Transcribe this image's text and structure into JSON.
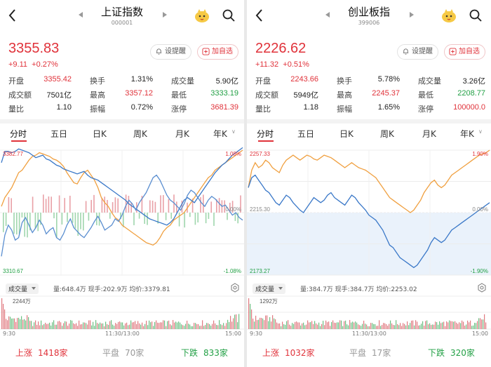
{
  "panels": [
    {
      "id": "left",
      "title": "上证指数",
      "code": "000001",
      "price": "3355.83",
      "change": "+9.11",
      "change_pct": "+0.27%",
      "remind_label": "设提醒",
      "watch_label": "加自选",
      "stats": [
        [
          {
            "label": "开盘",
            "value": "3355.42",
            "color": "red"
          },
          {
            "label": "换手",
            "value": "1.31%",
            "color": "dark"
          },
          {
            "label": "成交量",
            "value": "5.90亿",
            "color": "dark"
          }
        ],
        [
          {
            "label": "成交额",
            "value": "7501亿",
            "color": "dark"
          },
          {
            "label": "最高",
            "value": "3357.12",
            "color": "red"
          },
          {
            "label": "最低",
            "value": "3333.19",
            "color": "green"
          }
        ],
        [
          {
            "label": "量比",
            "value": "1.10",
            "color": "dark"
          },
          {
            "label": "振幅",
            "value": "0.72%",
            "color": "dark"
          },
          {
            "label": "涨停",
            "value": "3681.39",
            "color": "red"
          }
        ]
      ],
      "tabs": [
        "分时",
        "五日",
        "日K",
        "周K",
        "月K",
        "年K"
      ],
      "chart": {
        "y_top": "3382.77",
        "y_mid": "",
        "y_bottom": "3310.67",
        "pct_top": "1.08%",
        "pct_mid": "0.00%",
        "pct_bottom": "-1.08%",
        "price_series": [
          0.15,
          0.32,
          0.4,
          0.36,
          0.28,
          0.3,
          0.42,
          0.46,
          0.4,
          0.34,
          0.38,
          0.44,
          0.4,
          0.33,
          0.36,
          0.38,
          0.3,
          0.28,
          0.33,
          0.4,
          0.45,
          0.38,
          0.35,
          0.32,
          0.3,
          0.34,
          0.38,
          0.43,
          0.47,
          0.42,
          0.36,
          0.38,
          0.4,
          0.45,
          0.43,
          0.48,
          0.55,
          0.6,
          0.57,
          0.52,
          0.58,
          0.62,
          0.66,
          0.72,
          0.78,
          0.8,
          0.76,
          0.7,
          0.64,
          0.6,
          0.58,
          0.55,
          0.52,
          0.57,
          0.64,
          0.68,
          0.66,
          0.62,
          0.58,
          0.55,
          0.6,
          0.63,
          0.61,
          0.58,
          0.55,
          0.56,
          0.52,
          0.48,
          0.5,
          0.46,
          0.44
        ],
        "avg_series": [
          0.9,
          0.99,
          0.99,
          0.98,
          0.99,
          1.01,
          1.0,
          0.99,
          0.98,
          0.96,
          0.94,
          0.95,
          0.96,
          0.93,
          0.92,
          0.9,
          0.88,
          0.87,
          0.85,
          0.84,
          0.83,
          0.82,
          0.81,
          0.82,
          0.83,
          0.8,
          0.78,
          0.77,
          0.76,
          0.74,
          0.72,
          0.7,
          0.68,
          0.66,
          0.64,
          0.62,
          0.6,
          0.57,
          0.55,
          0.53,
          0.51,
          0.49,
          0.47,
          0.45,
          0.44,
          0.43,
          0.42,
          0.41,
          0.4,
          0.42,
          0.45,
          0.5,
          0.55,
          0.6,
          0.62,
          0.6,
          0.58,
          0.62,
          0.66,
          0.7,
          0.74,
          0.78,
          0.82,
          0.85,
          0.88,
          0.9,
          0.93,
          0.96,
          0.98,
          1.0,
          1.02
        ],
        "orange_series": [
          0.55,
          0.62,
          0.66,
          0.7,
          0.76,
          0.82,
          0.84,
          0.88,
          0.92,
          0.95,
          0.96,
          0.98,
          0.97,
          0.96,
          0.95,
          0.93,
          0.92,
          0.9,
          0.87,
          0.82,
          0.78,
          0.74,
          0.73,
          0.78,
          0.82,
          0.84,
          0.8,
          0.76,
          0.7,
          0.62,
          0.58,
          0.55,
          0.5,
          0.46,
          0.44,
          0.4,
          0.38,
          0.36,
          0.34,
          0.32,
          0.3,
          0.28,
          0.26,
          0.25,
          0.24,
          0.26,
          0.3,
          0.35,
          0.38,
          0.4,
          0.44,
          0.46,
          0.48,
          0.5,
          0.54,
          0.58,
          0.62,
          0.66,
          0.7,
          0.74,
          0.78,
          0.8,
          0.84,
          0.86,
          0.88,
          0.9,
          0.92,
          0.94,
          0.96,
          0.98,
          1.0
        ]
      },
      "vol_selector": "成交量",
      "vol_info": "量:648.4万  现手:202.9万  均价:3379.81",
      "vol_peak": "2244万",
      "time_start": "9:30",
      "time_mid": "11:30/13:00",
      "time_end": "15:00",
      "breadth": [
        {
          "label": "上涨",
          "value": "1418家",
          "color": "red"
        },
        {
          "label": "平盘",
          "value": "70家",
          "color": "gray"
        },
        {
          "label": "下跌",
          "value": "833家",
          "color": "green"
        }
      ]
    },
    {
      "id": "right",
      "title": "创业板指",
      "code": "399006",
      "price": "2226.62",
      "change": "+11.32",
      "change_pct": "+0.51%",
      "remind_label": "设提醒",
      "watch_label": "加自选",
      "stats": [
        [
          {
            "label": "开盘",
            "value": "2243.66",
            "color": "red"
          },
          {
            "label": "换手",
            "value": "5.78%",
            "color": "dark"
          },
          {
            "label": "成交量",
            "value": "3.26亿",
            "color": "dark"
          }
        ],
        [
          {
            "label": "成交额",
            "value": "5949亿",
            "color": "dark"
          },
          {
            "label": "最高",
            "value": "2245.37",
            "color": "red"
          },
          {
            "label": "最低",
            "value": "2208.77",
            "color": "green"
          }
        ],
        [
          {
            "label": "量比",
            "value": "1.18",
            "color": "dark"
          },
          {
            "label": "振幅",
            "value": "1.65%",
            "color": "dark"
          },
          {
            "label": "涨停",
            "value": "100000.0",
            "color": "red"
          }
        ]
      ],
      "tabs": [
        "分时",
        "五日",
        "日K",
        "周K",
        "月K",
        "年K"
      ],
      "chart": {
        "y_top": "2257.33",
        "y_mid": "2215.30",
        "y_bottom": "2173.27",
        "pct_top": "1.90%",
        "pct_mid": "0.00%",
        "pct_bottom": "-1.90%",
        "avg_series": [
          0.7,
          0.78,
          0.8,
          0.76,
          0.72,
          0.68,
          0.66,
          0.62,
          0.58,
          0.56,
          0.6,
          0.64,
          0.62,
          0.58,
          0.55,
          0.52,
          0.5,
          0.54,
          0.58,
          0.62,
          0.6,
          0.58,
          0.6,
          0.64,
          0.66,
          0.62,
          0.6,
          0.58,
          0.56,
          0.6,
          0.64,
          0.62,
          0.58,
          0.55,
          0.52,
          0.48,
          0.46,
          0.44,
          0.4,
          0.36,
          0.3,
          0.24,
          0.22,
          0.18,
          0.14,
          0.12,
          0.1,
          0.08,
          0.06,
          0.08,
          0.12,
          0.16,
          0.2,
          0.26,
          0.3,
          0.28,
          0.26,
          0.28,
          0.32,
          0.36,
          0.38,
          0.4,
          0.42,
          0.44,
          0.46,
          0.48,
          0.5,
          0.52,
          0.54,
          0.56,
          0.58
        ],
        "orange_series": [
          0.7,
          0.84,
          0.9,
          0.86,
          0.88,
          0.92,
          0.9,
          0.86,
          0.84,
          0.82,
          0.88,
          0.92,
          0.94,
          0.96,
          0.94,
          0.92,
          0.94,
          0.96,
          0.95,
          0.93,
          0.92,
          0.94,
          0.96,
          0.95,
          0.94,
          0.92,
          0.9,
          0.88,
          0.86,
          0.88,
          0.9,
          0.88,
          0.86,
          0.85,
          0.84,
          0.82,
          0.8,
          0.78,
          0.74,
          0.7,
          0.66,
          0.62,
          0.6,
          0.58,
          0.56,
          0.54,
          0.52,
          0.5,
          0.52,
          0.56,
          0.6,
          0.66,
          0.7,
          0.74,
          0.76,
          0.72,
          0.7,
          0.72,
          0.76,
          0.8,
          0.82,
          0.84,
          0.86,
          0.88,
          0.9,
          0.92,
          0.94,
          0.96,
          0.97,
          0.98,
          1.0
        ]
      },
      "vol_selector": "成交量",
      "vol_info": "量:384.7万  现手:384.7万  均价:2253.02",
      "vol_peak": "1292万",
      "time_start": "9:30",
      "time_mid": "11:30/13:00",
      "time_end": "15:00",
      "breadth": [
        {
          "label": "上涨",
          "value": "1032家",
          "color": "red"
        },
        {
          "label": "平盘",
          "value": "17家",
          "color": "gray"
        },
        {
          "label": "下跌",
          "value": "320家",
          "color": "green"
        }
      ]
    }
  ],
  "colors": {
    "red": "#e0323a",
    "green": "#22a045",
    "orange": "#f0a040",
    "blue": "#3a78c8"
  }
}
